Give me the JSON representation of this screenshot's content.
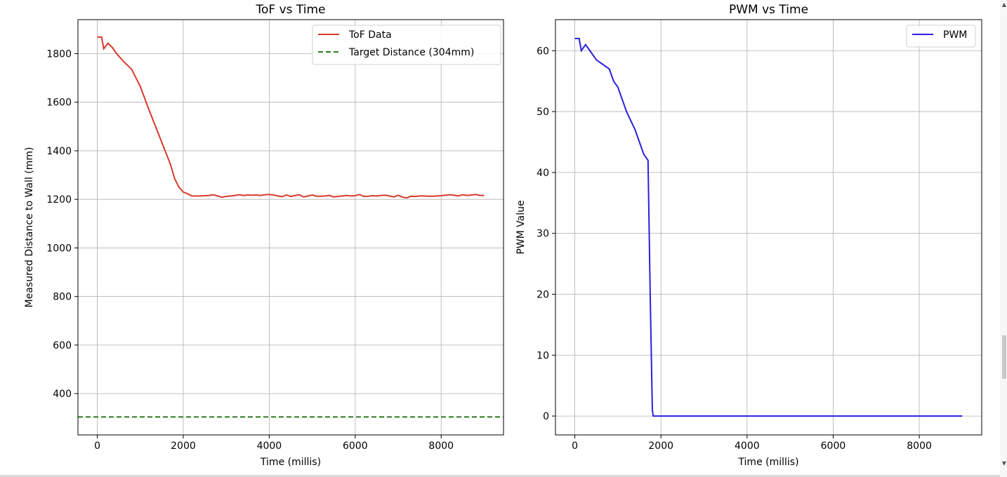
{
  "chart_data": [
    {
      "type": "line",
      "title": "ToF vs Time",
      "xlabel": "Time (millis)",
      "ylabel": "Measured Distance to Wall (mm)",
      "xlim": [
        -450,
        9450
      ],
      "ylim": [
        230,
        1940
      ],
      "xticks": [
        0,
        2000,
        4000,
        6000,
        8000
      ],
      "yticks": [
        400,
        600,
        800,
        1000,
        1200,
        1400,
        1600,
        1800
      ],
      "grid": true,
      "legend_position": "top-right",
      "series": [
        {
          "name": "ToF Data",
          "color": "#d83a2b",
          "style": "solid",
          "x": [
            0,
            100,
            150,
            250,
            350,
            450,
            600,
            800,
            1000,
            1200,
            1400,
            1600,
            1700,
            1800,
            1900,
            2000,
            2100,
            2200,
            2400,
            2600,
            2700,
            2800,
            2900,
            3000,
            3100,
            3200,
            3300,
            3400,
            3500,
            3600,
            3700,
            3800,
            3900,
            4000,
            4100,
            4200,
            4300,
            4400,
            4500,
            4600,
            4700,
            4800,
            4900,
            5000,
            5100,
            5200,
            5300,
            5400,
            5500,
            5600,
            5700,
            5800,
            5900,
            6000,
            6100,
            6200,
            6300,
            6400,
            6500,
            6600,
            6700,
            6800,
            6900,
            7000,
            7100,
            7200,
            7300,
            7400,
            7500,
            7600,
            7700,
            7800,
            7900,
            8000,
            8100,
            8200,
            8300,
            8400,
            8500,
            8600,
            8700,
            8800,
            8900,
            9000
          ],
          "y": [
            1868,
            1868,
            1820,
            1843,
            1825,
            1800,
            1770,
            1735,
            1665,
            1570,
            1480,
            1390,
            1345,
            1285,
            1250,
            1230,
            1223,
            1214,
            1214,
            1216,
            1219,
            1214,
            1209,
            1212,
            1214,
            1216,
            1219,
            1216,
            1218,
            1217,
            1218,
            1216,
            1219,
            1220,
            1218,
            1214,
            1211,
            1218,
            1212,
            1216,
            1219,
            1210,
            1214,
            1218,
            1213,
            1213,
            1214,
            1216,
            1210,
            1212,
            1214,
            1216,
            1214,
            1215,
            1220,
            1212,
            1213,
            1215,
            1214,
            1216,
            1217,
            1214,
            1210,
            1217,
            1209,
            1206,
            1213,
            1212,
            1214,
            1214,
            1213,
            1213,
            1214,
            1215,
            1217,
            1219,
            1217,
            1214,
            1219,
            1216,
            1218,
            1220,
            1216,
            1216
          ]
        },
        {
          "name": "Target Distance (304mm)",
          "color": "#2b7a1f",
          "style": "dashed",
          "y_const": 304
        }
      ]
    },
    {
      "type": "line",
      "title": "PWM vs Time",
      "xlabel": "Time (millis)",
      "ylabel": "PWM Value",
      "xlim": [
        -450,
        9450
      ],
      "ylim": [
        -3.1,
        65.1
      ],
      "xticks": [
        0,
        2000,
        4000,
        6000,
        8000
      ],
      "yticks": [
        0,
        10,
        20,
        30,
        40,
        50,
        60
      ],
      "grid": true,
      "legend_position": "top-right",
      "series": [
        {
          "name": "PWM",
          "color": "#2a1fe0",
          "style": "solid",
          "x": [
            0,
            100,
            150,
            250,
            300,
            400,
            500,
            600,
            700,
            800,
            900,
            1000,
            1100,
            1200,
            1300,
            1400,
            1500,
            1600,
            1700,
            1750,
            1800,
            1820,
            9000
          ],
          "y": [
            62,
            62,
            60,
            61,
            60.5,
            59.5,
            58.5,
            58,
            57.5,
            57,
            55,
            54,
            52,
            50,
            48.5,
            47,
            45,
            43,
            42,
            20,
            1,
            0,
            0
          ]
        }
      ]
    }
  ],
  "scrollbar": {
    "up_arrow_icon": "scroll-up-arrow",
    "down_arrow_icon": "scroll-down-arrow"
  }
}
